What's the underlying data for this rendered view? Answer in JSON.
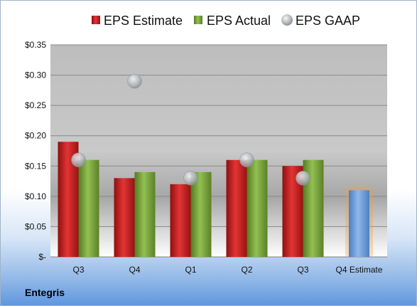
{
  "company": "Entegris",
  "colors": {
    "estimate": "#cc1f1f",
    "actual": "#7aa63a",
    "gaap": "#b9bcc2",
    "q4estimate": "#6e9fdb",
    "highlight": "#f0a040"
  },
  "chart_data": {
    "type": "bar",
    "categories": [
      "Q3",
      "Q4",
      "Q1",
      "Q2",
      "Q3",
      "Q4 Estimate"
    ],
    "y_tick_labels": [
      "$-",
      "$0.05",
      "$0.10",
      "$0.15",
      "$0.20",
      "$0.25",
      "$0.30",
      "$0.35"
    ],
    "ylim": [
      0,
      0.35
    ],
    "legend_position": "top",
    "series": [
      {
        "name": "EPS Estimate",
        "kind": "bar",
        "values": [
          0.19,
          0.13,
          0.12,
          0.16,
          0.15,
          null
        ]
      },
      {
        "name": "EPS Actual",
        "kind": "bar",
        "values": [
          0.16,
          0.14,
          0.14,
          0.16,
          0.16,
          null
        ]
      },
      {
        "name": "EPS GAAP",
        "kind": "marker",
        "values": [
          0.16,
          0.29,
          0.13,
          0.16,
          0.13,
          null
        ]
      }
    ],
    "forecast": {
      "category": "Q4 Estimate",
      "value": 0.11
    }
  }
}
